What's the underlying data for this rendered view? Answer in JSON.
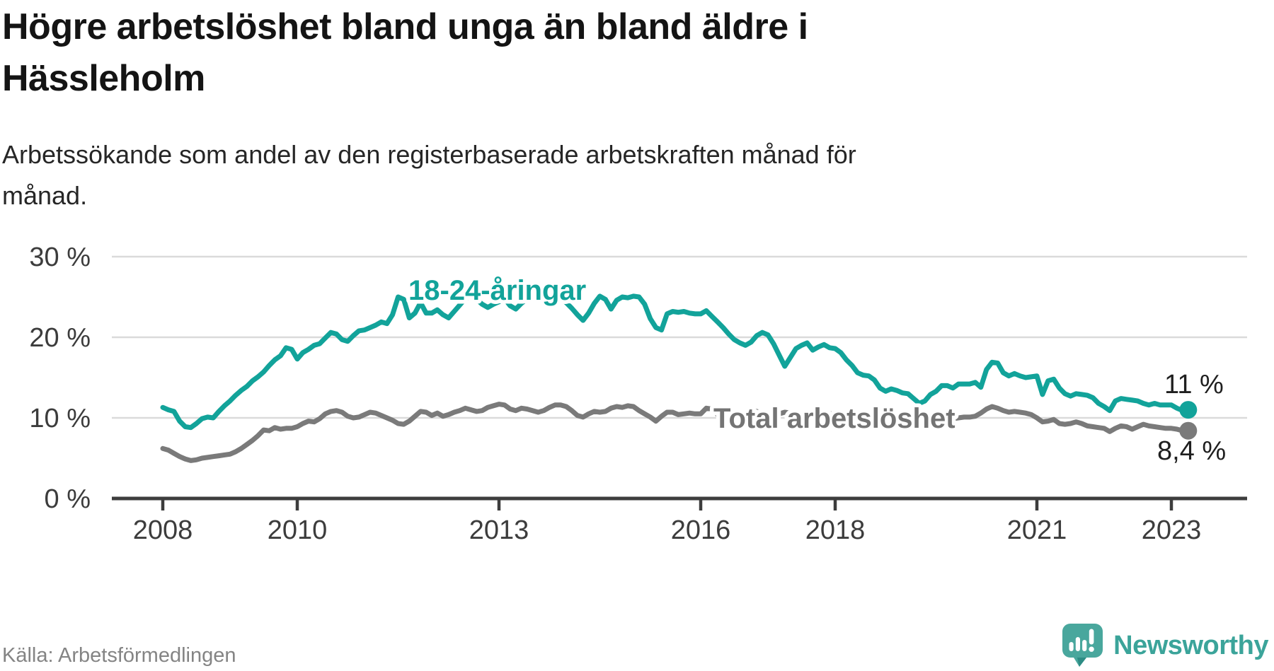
{
  "header": {
    "title_lines": [
      "Högre arbetslöshet bland unga än bland äldre i",
      "Hässleholm"
    ],
    "subtitle_lines": [
      "Arbetssökande som andel av den registerbaserade arbetskraften månad för",
      "månad."
    ]
  },
  "footer": {
    "source": "Källa: Arbetsförmedlingen",
    "brand": "Newsworthy",
    "brand_icon": "newsworthy-speech-bubble-bar-chart-icon"
  },
  "colors": {
    "youth_line": "#12a39a",
    "total_line": "#7a7a7a",
    "total_label": "#747474",
    "axis": "#3d3d3d",
    "gridline": "#dadada",
    "tick_text": "#3c3c3c",
    "end_label_text": "#1f1f1f",
    "brand_teal": "#3ba49a"
  },
  "chart_data": {
    "type": "line",
    "unit": "%",
    "frequency": "monthly",
    "start": "2008-01",
    "end": "2023-04",
    "xlabel": "",
    "ylabel": "",
    "ylim": [
      0,
      31.5
    ],
    "grid": "horizontal",
    "legend_position": "inline-labels",
    "x_tick_years": [
      2008,
      2010,
      2013,
      2016,
      2018,
      2021,
      2023
    ],
    "y_ticks": [
      {
        "value": 0,
        "label": "0 %"
      },
      {
        "value": 10,
        "label": "10 %"
      },
      {
        "value": 20,
        "label": "20 %"
      },
      {
        "value": 30,
        "label": "30 %"
      }
    ],
    "series": [
      {
        "name": "18-24-åringar",
        "color": "#12a39a",
        "label_color": "#12a39a",
        "end_label": "11 %",
        "last_value": 11.0,
        "values": [
          11.3,
          11.0,
          10.8,
          9.6,
          8.9,
          8.8,
          9.3,
          9.9,
          10.1,
          10.0,
          10.8,
          11.5,
          12.1,
          12.8,
          13.4,
          13.9,
          14.6,
          15.1,
          15.7,
          16.5,
          17.2,
          17.7,
          18.7,
          18.5,
          17.3,
          18.1,
          18.5,
          19.0,
          19.2,
          19.9,
          20.6,
          20.4,
          19.7,
          19.5,
          20.2,
          20.8,
          20.9,
          21.2,
          21.5,
          21.9,
          21.7,
          22.8,
          25.0,
          24.7,
          22.4,
          23.0,
          24.3,
          23.0,
          23.0,
          23.4,
          22.8,
          22.4,
          23.2,
          24.0,
          24.8,
          25.2,
          24.7,
          24.1,
          23.7,
          24.1,
          24.4,
          24.8,
          23.9,
          23.5,
          24.2,
          24.8,
          25.3,
          25.1,
          24.6,
          24.9,
          25.2,
          24.8,
          24.3,
          23.6,
          22.8,
          22.1,
          23.0,
          24.2,
          25.1,
          24.7,
          23.5,
          24.6,
          25.0,
          24.9,
          25.1,
          25.0,
          24.1,
          22.3,
          21.2,
          20.9,
          22.9,
          23.2,
          23.1,
          23.2,
          23.0,
          22.9,
          22.9,
          23.3,
          22.6,
          21.9,
          21.2,
          20.4,
          19.7,
          19.3,
          19.0,
          19.4,
          20.2,
          20.6,
          20.3,
          19.2,
          17.8,
          16.4,
          17.5,
          18.6,
          19.0,
          19.3,
          18.4,
          18.8,
          19.1,
          18.7,
          18.6,
          18.1,
          17.2,
          16.5,
          15.6,
          15.3,
          15.2,
          14.7,
          13.7,
          13.3,
          13.6,
          13.4,
          13.1,
          13.0,
          12.4,
          11.8,
          12.1,
          12.9,
          13.3,
          14.0,
          14.0,
          13.7,
          14.2,
          14.2,
          14.2,
          14.4,
          13.8,
          16.0,
          16.9,
          16.8,
          15.6,
          15.2,
          15.5,
          15.2,
          15.0,
          15.1,
          15.2,
          12.9,
          14.6,
          14.8,
          13.7,
          13.0,
          12.7,
          13.0,
          12.9,
          12.8,
          12.5,
          11.8,
          11.4,
          10.9,
          12.1,
          12.4,
          12.3,
          12.2,
          12.1,
          11.8,
          11.6,
          11.8,
          11.6,
          11.6,
          11.6,
          11.2,
          10.9,
          11.0
        ]
      },
      {
        "name": "Total arbetslöshet",
        "color": "#7a7a7a",
        "label_color": "#747474",
        "end_label": "8,4 %",
        "last_value": 8.4,
        "values": [
          6.2,
          6.0,
          5.6,
          5.2,
          4.9,
          4.7,
          4.8,
          5.0,
          5.1,
          5.2,
          5.3,
          5.4,
          5.5,
          5.8,
          6.2,
          6.7,
          7.2,
          7.8,
          8.5,
          8.4,
          8.8,
          8.6,
          8.7,
          8.7,
          8.9,
          9.3,
          9.6,
          9.5,
          9.9,
          10.5,
          10.8,
          10.9,
          10.7,
          10.2,
          10.0,
          10.1,
          10.4,
          10.7,
          10.6,
          10.3,
          10.0,
          9.7,
          9.3,
          9.2,
          9.6,
          10.2,
          10.8,
          10.7,
          10.3,
          10.6,
          10.2,
          10.4,
          10.7,
          10.9,
          11.2,
          11.0,
          10.8,
          10.9,
          11.3,
          11.5,
          11.7,
          11.6,
          11.1,
          10.9,
          11.2,
          11.1,
          10.9,
          10.7,
          10.9,
          11.3,
          11.6,
          11.6,
          11.4,
          10.9,
          10.3,
          10.1,
          10.5,
          10.8,
          10.7,
          10.8,
          11.2,
          11.4,
          11.3,
          11.5,
          11.4,
          10.9,
          10.5,
          10.1,
          9.6,
          10.2,
          10.7,
          10.7,
          10.4,
          10.5,
          10.6,
          10.5,
          10.5,
          11.2,
          11.1,
          10.4,
          10.1,
          10.2,
          10.1,
          10.2,
          10.4,
          10.9,
          10.8,
          10.6,
          10.6,
          10.4,
          10.5,
          10.7,
          10.6,
          10.4,
          10.5,
          10.6,
          10.4,
          10.3,
          10.4,
          10.5,
          10.5,
          10.4,
          10.2,
          10.1,
          10.0,
          10.1,
          10.2,
          10.1,
          9.9,
          9.8,
          9.9,
          10.0,
          9.9,
          9.8,
          9.6,
          9.5,
          9.6,
          9.8,
          10.0,
          10.1,
          10.0,
          9.9,
          10.0,
          10.1,
          10.1,
          10.2,
          10.6,
          11.1,
          11.4,
          11.2,
          10.9,
          10.7,
          10.8,
          10.7,
          10.6,
          10.4,
          10.0,
          9.5,
          9.6,
          9.8,
          9.3,
          9.2,
          9.3,
          9.5,
          9.3,
          9.0,
          8.9,
          8.8,
          8.7,
          8.3,
          8.7,
          9.0,
          8.9,
          8.6,
          8.9,
          9.2,
          9.0,
          8.9,
          8.8,
          8.7,
          8.7,
          8.6,
          8.4,
          8.4
        ]
      }
    ]
  }
}
